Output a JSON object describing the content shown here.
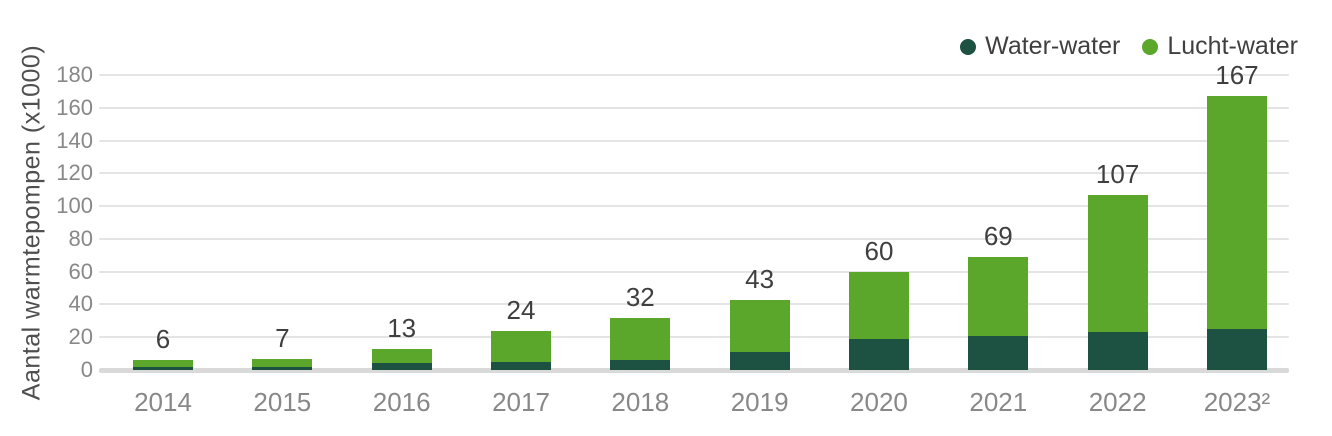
{
  "chart_data": {
    "type": "bar",
    "stacked": true,
    "title": "",
    "xlabel": "",
    "ylabel": "Aantal  warmtepompen (x1000)",
    "categories": [
      "2014",
      "2015",
      "2016",
      "2017",
      "2018",
      "2019",
      "2020",
      "2021",
      "2022",
      "2023²"
    ],
    "series": [
      {
        "name": "Water-water",
        "color": "#1d5141",
        "values": [
          2,
          2,
          4,
          5,
          6,
          11,
          19,
          21,
          23,
          25
        ]
      },
      {
        "name": "Lucht-water",
        "color": "#5aa72c",
        "values": [
          4,
          5,
          9,
          19,
          26,
          32,
          41,
          48,
          84,
          142
        ]
      }
    ],
    "totals": [
      6,
      7,
      13,
      24,
      32,
      43,
      60,
      69,
      107,
      167
    ],
    "total_labels": [
      "6",
      "7",
      "13",
      "24",
      "32",
      "43",
      "60",
      "69",
      "107",
      "167"
    ],
    "yticks": [
      0,
      20,
      40,
      60,
      80,
      100,
      120,
      140,
      160,
      180
    ],
    "ylim": [
      0,
      180
    ],
    "grid": true,
    "legend_position": "top-right"
  },
  "colors": {
    "water_water": "#1d5141",
    "lucht_water": "#5aa72c",
    "gridline": "#e4e4e4",
    "zero_line": "#d9d9d9",
    "tick_text": "#888888",
    "value_text": "#3f3f3f",
    "axis_title_text": "#4f4f4f"
  }
}
